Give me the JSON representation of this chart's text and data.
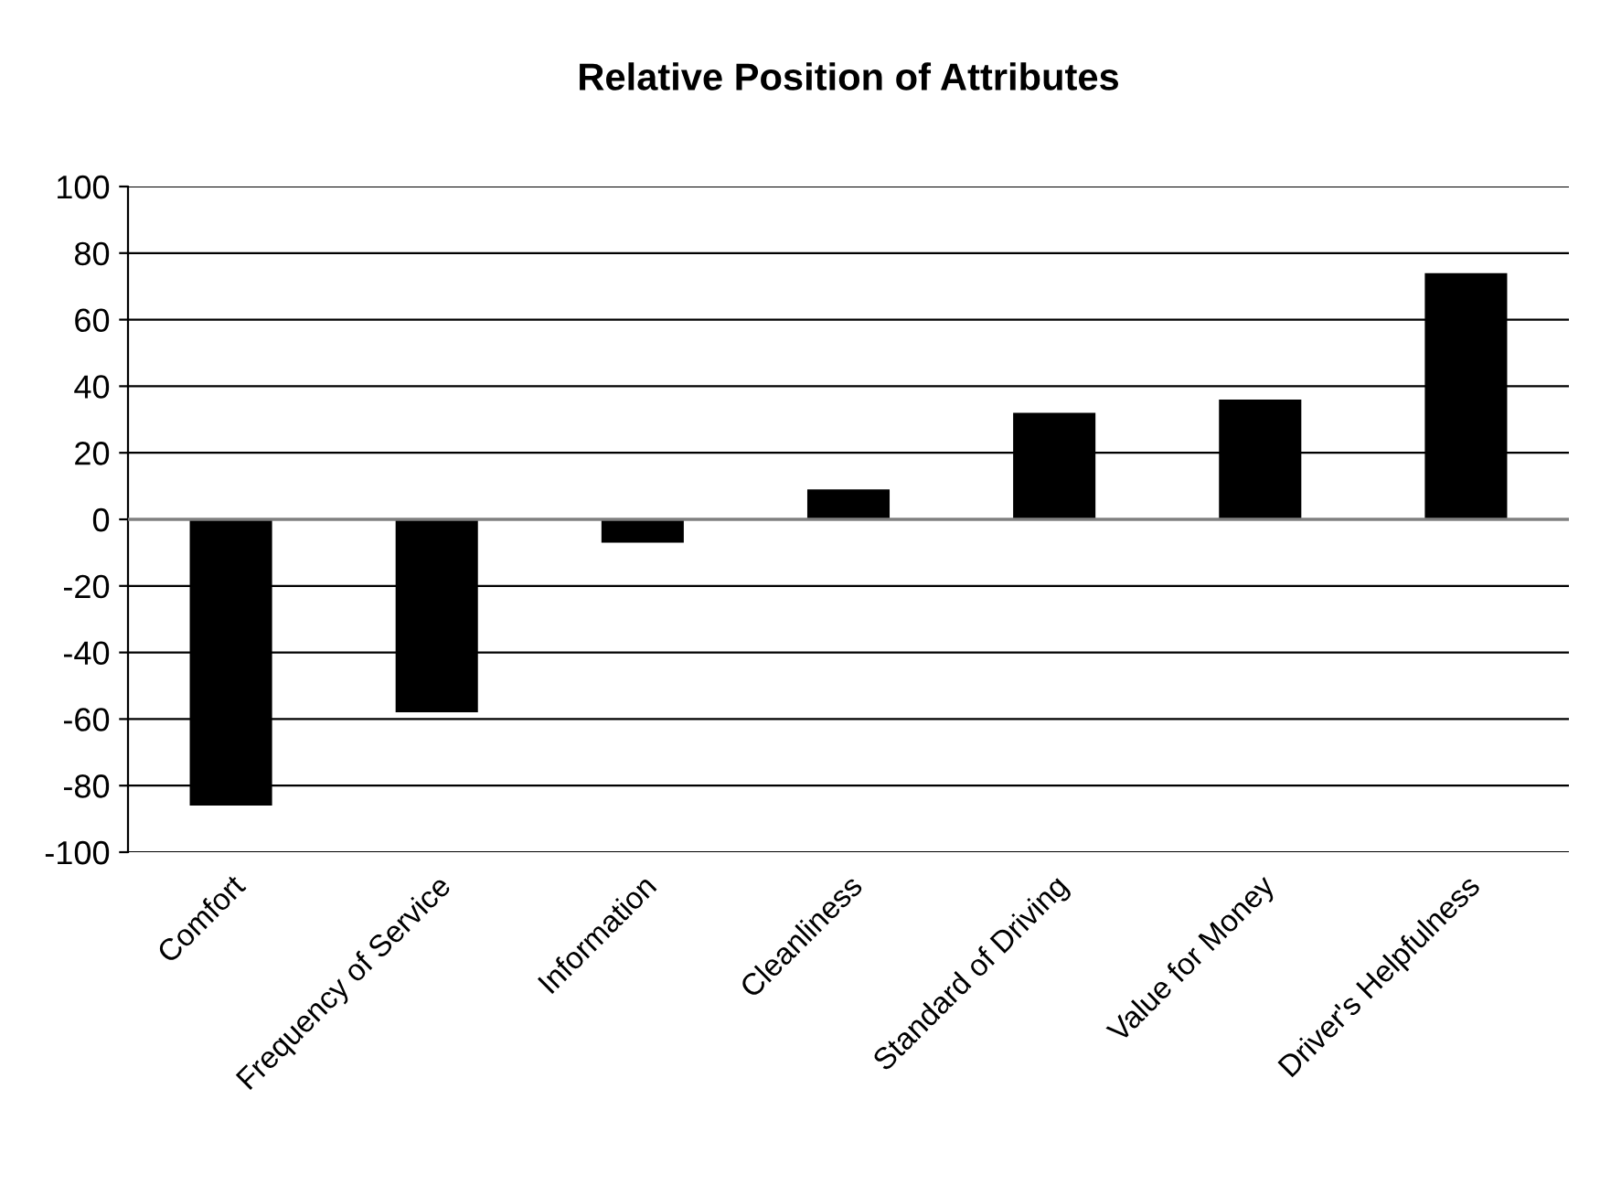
{
  "chart_data": {
    "type": "bar",
    "title": "Relative Position of Attributes",
    "categories": [
      "Comfort",
      "Frequency of Service",
      "Information",
      "Cleanliness",
      "Standard of Driving",
      "Value for Money",
      "Driver's Helpfulness"
    ],
    "values": [
      -86,
      -58,
      -7,
      9,
      32,
      36,
      74
    ],
    "color": "#000000",
    "ylim": [
      -100,
      100
    ],
    "yticks": [
      -100,
      -80,
      -60,
      -40,
      -20,
      0,
      20,
      40,
      60,
      80,
      100
    ],
    "grid": "y"
  }
}
